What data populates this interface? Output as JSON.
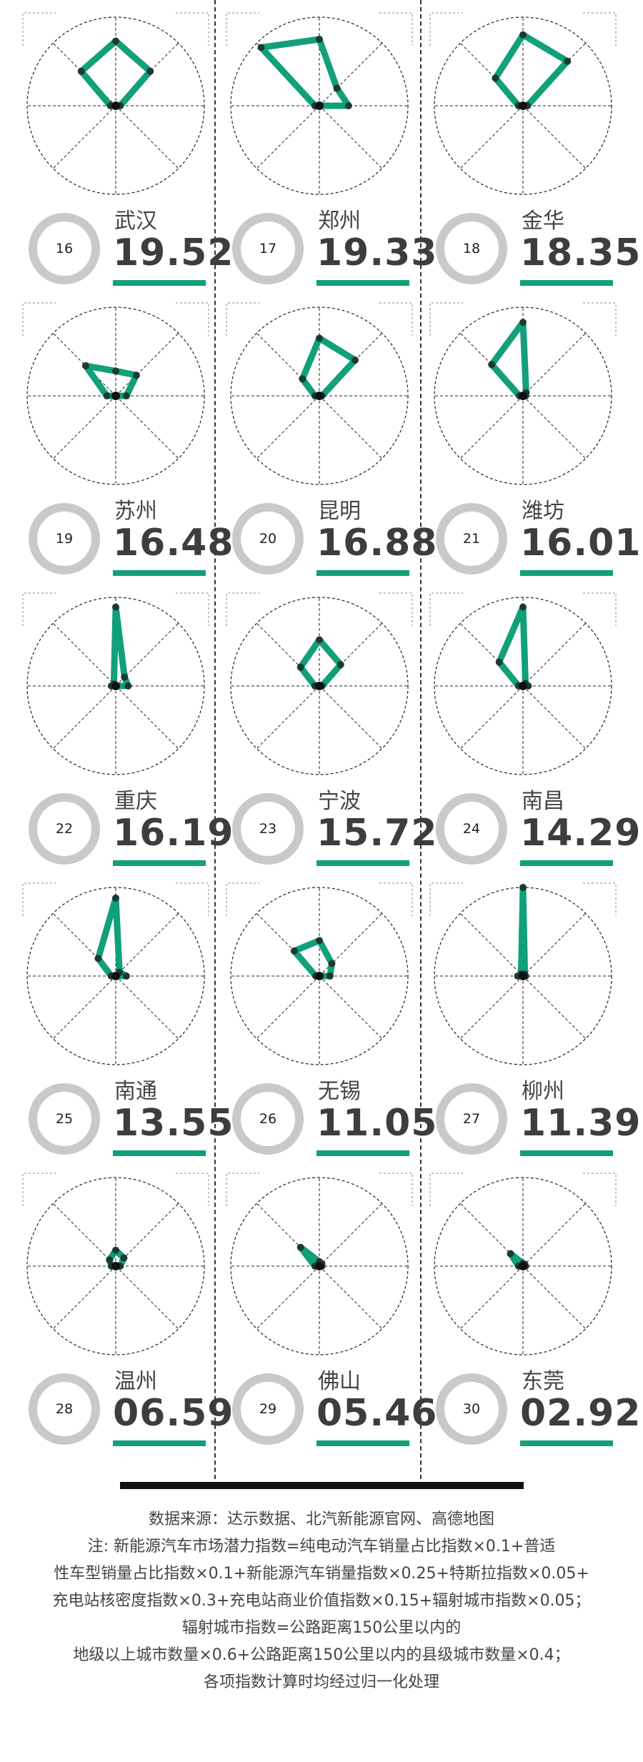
{
  "colors": {
    "accent": "#11a079",
    "ring": "#c9c9c9",
    "text": "#3d3d3d"
  },
  "chart_data": {
    "type": "radar",
    "axes_count": 8,
    "note": "Each city has a radar of component indices; spoke values read relative to circle radius (0-1).",
    "cities": [
      {
        "rank": "16",
        "name": "武汉",
        "score": "19.52",
        "values": [
          0.73,
          0.55,
          0.05,
          0,
          0,
          0,
          0.06,
          0.55
        ]
      },
      {
        "rank": "17",
        "name": "郑州",
        "score": "19.33",
        "values": [
          0.75,
          0.28,
          0.33,
          0,
          0,
          0,
          0.05,
          0.93
        ]
      },
      {
        "rank": "18",
        "name": "金华",
        "score": "18.35",
        "values": [
          0.8,
          0.71,
          0.05,
          0,
          0,
          0,
          0.05,
          0.44
        ]
      },
      {
        "rank": "19",
        "name": "苏州",
        "score": "16.48",
        "values": [
          0.28,
          0.33,
          0.12,
          0,
          0,
          0,
          0.1,
          0.48
        ]
      },
      {
        "rank": "20",
        "name": "昆明",
        "score": "16.88",
        "values": [
          0.65,
          0.57,
          0.03,
          0,
          0,
          0,
          0.05,
          0.27
        ]
      },
      {
        "rank": "21",
        "name": "潍坊",
        "score": "16.01",
        "values": [
          0.83,
          0.05,
          0.03,
          0,
          0,
          0,
          0.04,
          0.5
        ]
      },
      {
        "rank": "22",
        "name": "重庆",
        "score": "16.19",
        "values": [
          0.89,
          0.14,
          0.14,
          0,
          0,
          0,
          0.05,
          0.03
        ]
      },
      {
        "rank": "23",
        "name": "宁波",
        "score": "15.72",
        "values": [
          0.52,
          0.34,
          0.03,
          0,
          0,
          0,
          0.05,
          0.3
        ]
      },
      {
        "rank": "24",
        "name": "南昌",
        "score": "14.29",
        "values": [
          0.89,
          0.04,
          0.06,
          0,
          0,
          0,
          0.05,
          0.38
        ]
      },
      {
        "rank": "25",
        "name": "南通",
        "score": "13.55",
        "values": [
          0.88,
          0.06,
          0.12,
          0,
          0,
          0,
          0.05,
          0.28
        ]
      },
      {
        "rank": "26",
        "name": "无锡",
        "score": "11.05",
        "values": [
          0.4,
          0.2,
          0.12,
          0,
          0,
          0,
          0.04,
          0.4
        ]
      },
      {
        "rank": "27",
        "name": "柳州",
        "score": "11.39",
        "values": [
          1.0,
          0.03,
          0.03,
          0,
          0,
          0,
          0.06,
          0.03
        ]
      },
      {
        "rank": "28",
        "name": "温州",
        "score": "06.59",
        "values": [
          0.18,
          0.13,
          0.05,
          0,
          0,
          0,
          0.05,
          0.1
        ]
      },
      {
        "rank": "29",
        "name": "佛山",
        "score": "05.46",
        "values": [
          0.05,
          0.04,
          0.03,
          0,
          0,
          0,
          0.05,
          0.3
        ]
      },
      {
        "rank": "30",
        "name": "东莞",
        "score": "02.92",
        "values": [
          0.03,
          0.03,
          0.03,
          0,
          0,
          0,
          0.05,
          0.2
        ]
      }
    ]
  },
  "footer": {
    "lines": [
      "数据来源：达示数据、北汽新能源官网、高德地图",
      "注: 新能源汽车市场潜力指数=纯电动汽车销量占比指数×0.1+普适",
      "性车型销量占比指数×0.1+新能源汽车销量指数×0.25+特斯拉指数×0.05+",
      "充电站核密度指数×0.3+充电站商业价值指数×0.15+辐射城市指数×0.05；",
      "辐射城市指数=公路距离150公里以内的",
      "地级以上城市数量×0.6+公路距离150公里以内的县级城市数量×0.4；",
      "各项指数计算时均经过归一化处理"
    ]
  }
}
